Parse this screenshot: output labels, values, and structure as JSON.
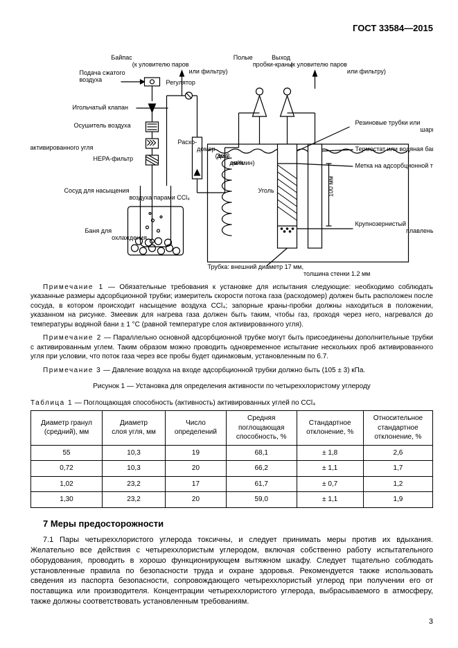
{
  "header": {
    "standard": "ГОСТ 33584—2015"
  },
  "diagram": {
    "labels": {
      "compressed_air": "Подача сжатого\nвоздуха",
      "bypass": "Байпас\n(к уловителю паров\nили фильтру)",
      "hollow_taps": "Полые\nпробки-краны",
      "outlet": "Выход\n(к уловителю паров\nили фильтру)",
      "needle_valve": "Игольчатый клапан",
      "regulator": "Регулятор",
      "air_dryer": "Осушитель воздуха",
      "carbon_filter": "Фильтр из\nактивированного угля",
      "hepa": "HEPA-фильтр",
      "saturation_vessel": "Сосуд для насыщения\nвоздуха парами CCl₄",
      "cooling_bath": "Баня для\nохлаждения",
      "flowmeter": "Расхо-\nдомер\n(до 2\nдм³/мин)",
      "coil": "Зме-\nевик",
      "coal": "Уголь",
      "rubber_tubes": "Резиновые трубки или\nшарнирное соединение",
      "thermostat": "Термостат или водяная баня",
      "mark": "Метка на адсорбционной трубке",
      "height": "100 мм",
      "disk": "Крупнозернистый\nплавленый диск\n(из этилцеллюлозы)",
      "tube_note": "Трубка: внешний диаметр 17 мм,\nтолщина стенки 1,2 мм"
    },
    "colors": {
      "stroke": "#000000",
      "fill_vessel": "#ffffff",
      "fill_water": "#ffffff",
      "background": "#ffffff"
    }
  },
  "notes": {
    "n1_lead": "Примечание 1",
    "n1": " — Обязательные требования к установке для испытания следующие: необходимо соблюдать указанные размеры адсорбционной трубки; измеритель скорости потока газа (расходомер) должен быть расположен после сосуда, в котором происходит насыщение воздуха CCl₄; запорные краны-пробки должны находиться в положении, указанном на рисунке. Змеевик для нагрева газа должен быть таким, чтобы газ, проходя через него, нагревался до температуры водяной бани ± 1 °C (равной температуре слоя активированного угля).",
    "n2_lead": "Примечание 2",
    "n2": " — Параллельно основной адсорбционной трубке могут быть присоединены дополнительные трубки с активированным углем. Таким образом можно проводить одновременное испытание нескольких проб активированного угля при условии, что поток газа через все пробы будет одинаковым, установленным по 6.7.",
    "n3_lead": "Примечание 3",
    "n3": " — Давление воздуха на входе адсорбционной трубки должно быть (105 ± 3) кПа."
  },
  "figure_caption": "Рисунок 1 — Установка для определения активности по четыреххлористому углероду",
  "table": {
    "caption_lead": "Таблица 1",
    "caption": " — Поглощающая способность (активность) активированных углей по CCl₄",
    "columns": [
      "Диаметр гранул\n(средний), мм",
      "Диаметр\nслоя угля, мм",
      "Число\nопределений",
      "Средняя\nпоглощающая\nспособность, %",
      "Стандартное\nотклонение, %",
      "Относительное\nстандартное\nотклонение, %"
    ],
    "rows": [
      [
        "55",
        "10,3",
        "19",
        "68,1",
        "± 1,8",
        "2,6"
      ],
      [
        "0,72",
        "10,3",
        "20",
        "66,2",
        "± 1,1",
        "1,7"
      ],
      [
        "1,02",
        "23,2",
        "17",
        "61,7",
        "± 0,7",
        "1,2"
      ],
      [
        "1,30",
        "23,2",
        "20",
        "59,0",
        "± 1,1",
        "1,9"
      ]
    ]
  },
  "section7": {
    "title": "7  Меры предосторожности",
    "p1": "7.1 Пары четыреххлористого углерода токсичны, и следует принимать меры против их вдыхания. Желательно все действия с четыреххлористым углеродом, включая собственно работу испытательного оборудования, проводить в хорошо функционирующем вытяжном шкафу. Следует тщательно соблюдать установленные правила по безопасности труда и охране здоровья. Рекомендуется также использовать сведения из паспорта безопасности, сопровождающего четыреххлористый углерод при получении его от поставщика или производителя. Концентрации четыреххлористого углерода, выбрасываемого в атмосферу, также должны соответствовать установленным требованиям."
  },
  "page_number": "3"
}
